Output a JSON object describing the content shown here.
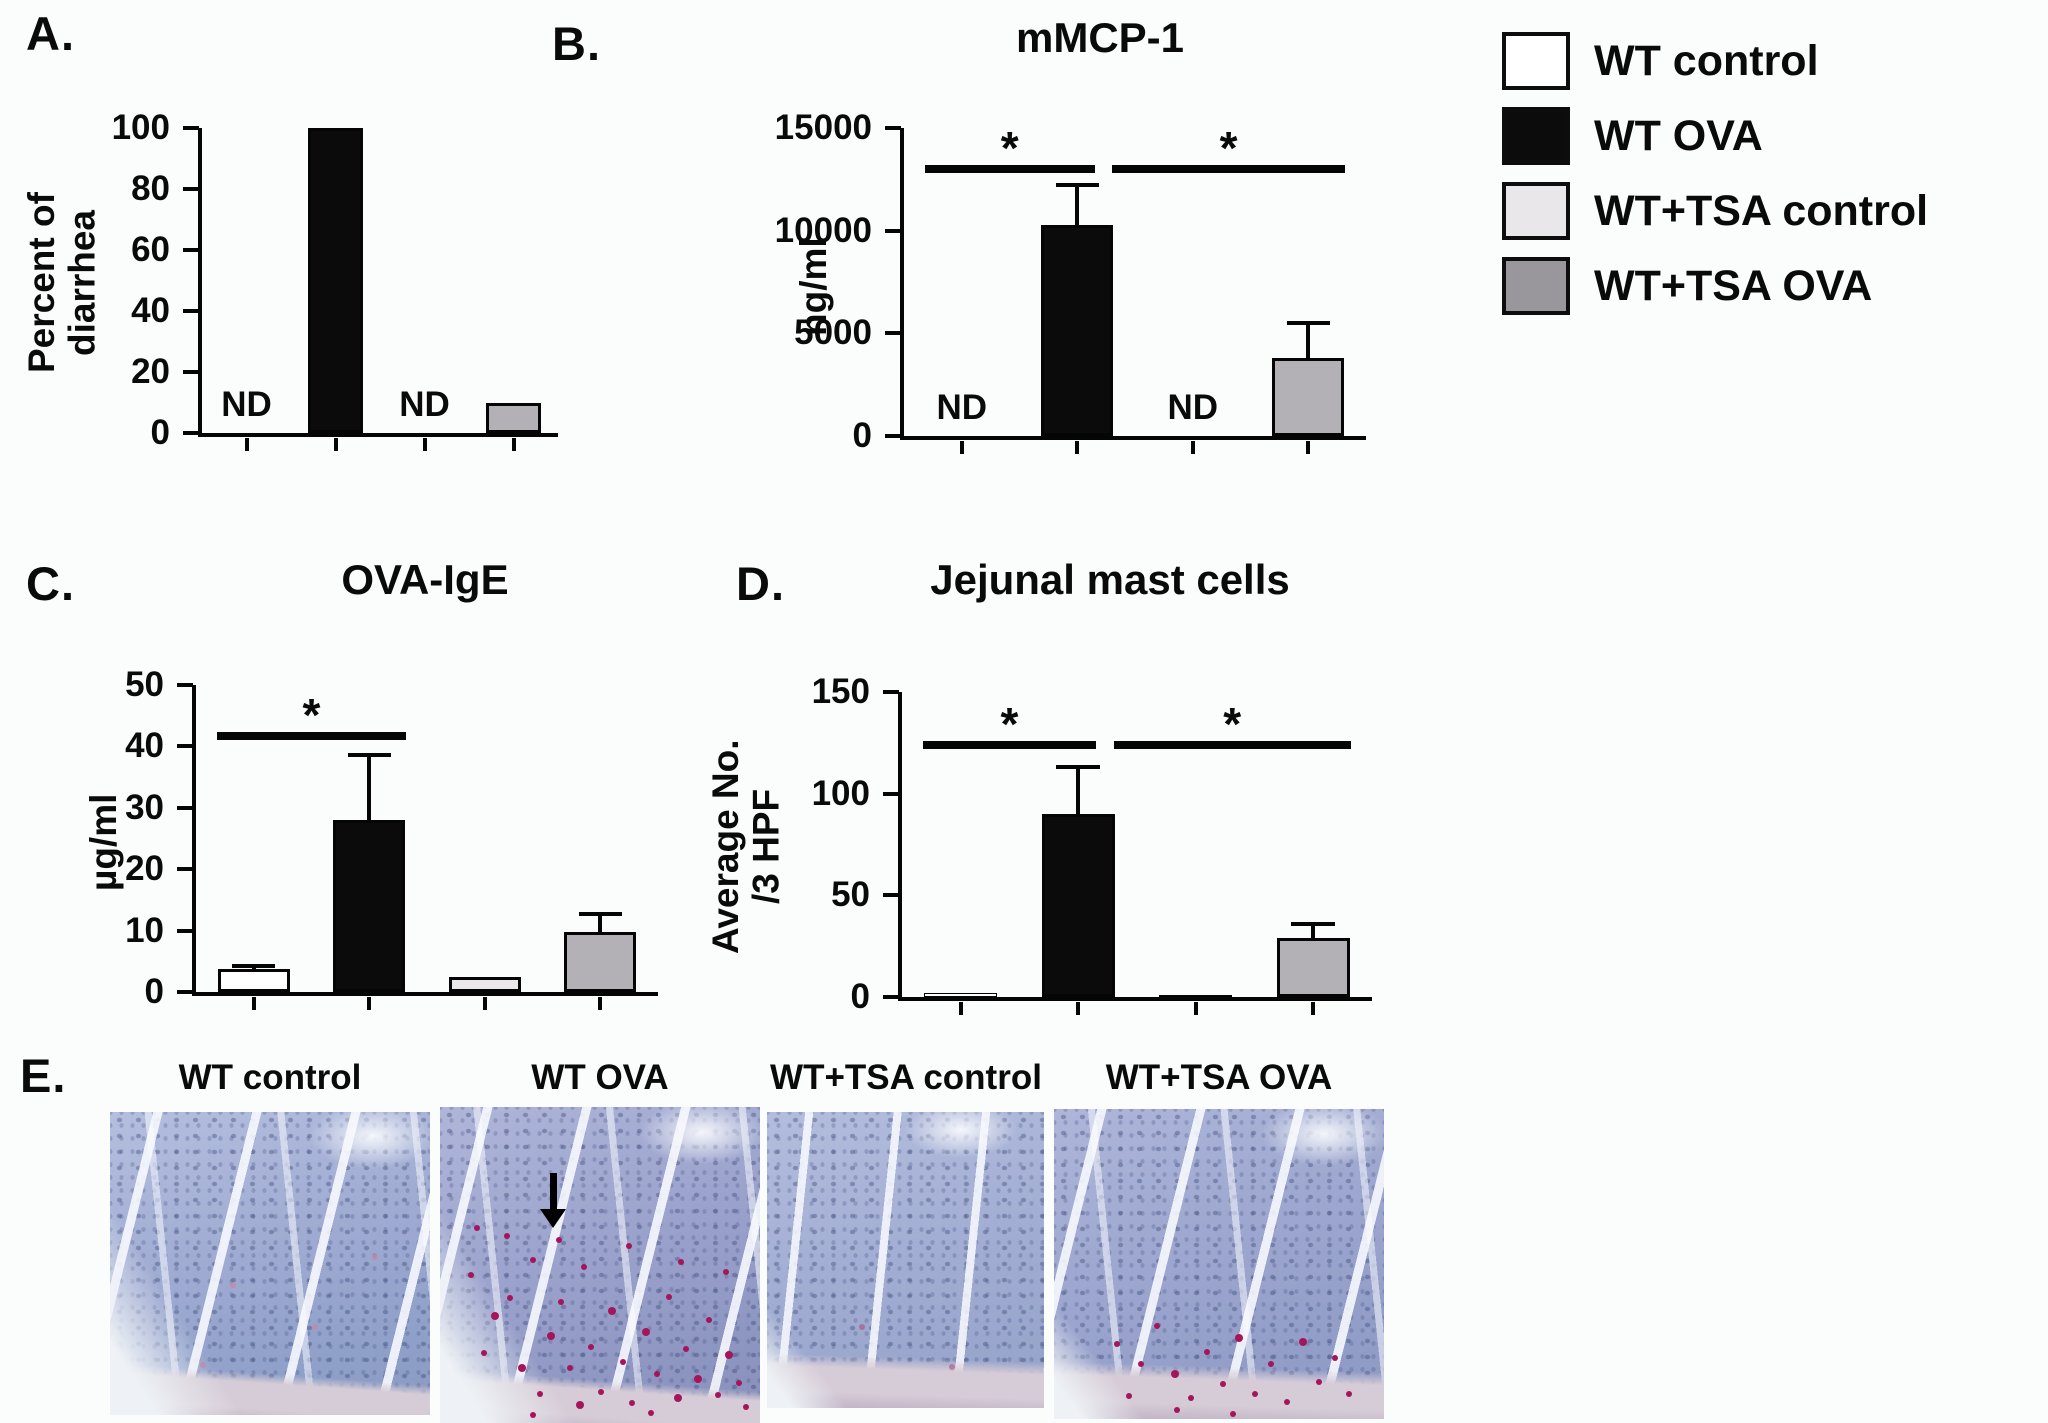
{
  "palette": {
    "background": "#fbfcfc",
    "axis": "#050505",
    "bars": {
      "wt_control": "#ffffff",
      "wt_ova": "#0b0b0b",
      "wt_tsa_control": "#eae8eb",
      "wt_tsa_ova": "#b3b1b5"
    },
    "legend_swatches": {
      "wt_control": "#ffffff",
      "wt_ova": "#0c0c0c",
      "wt_tsa_control": "#e9e7ea",
      "wt_tsa_ova": "#99979c"
    },
    "mast_cell_dot": "#a5155a"
  },
  "legend": {
    "items": [
      {
        "key": "wt_control",
        "label": "WT control"
      },
      {
        "key": "wt_ova",
        "label": "WT OVA"
      },
      {
        "key": "wt_tsa_control",
        "label": "WT+TSA control"
      },
      {
        "key": "wt_tsa_ova",
        "label": "WT+TSA OVA"
      }
    ]
  },
  "panels": {
    "A": {
      "letter": "A.",
      "chart_data": {
        "type": "bar",
        "title": "",
        "ylabel": "Percent of diarrhea",
        "ylim": [
          0,
          100
        ],
        "yticks": [
          0,
          20,
          40,
          60,
          80,
          100
        ],
        "categories": [
          "WT control",
          "WT OVA",
          "WT+TSA control",
          "WT+TSA OVA"
        ],
        "values": [
          0,
          100,
          0,
          10
        ],
        "errors": [
          0,
          0,
          0,
          0
        ],
        "nd": [
          true,
          false,
          true,
          false
        ],
        "nd_label": "ND",
        "bar_colors": [
          "wt_control",
          "wt_ova",
          "wt_tsa_control",
          "wt_tsa_ova"
        ],
        "significance": []
      }
    },
    "B": {
      "letter": "B.",
      "chart_data": {
        "type": "bar",
        "title": "mMCP-1",
        "ylabel": "ng/ml",
        "ylim": [
          0,
          15000
        ],
        "yticks": [
          0,
          5000,
          10000,
          15000
        ],
        "categories": [
          "WT control",
          "WT OVA",
          "WT+TSA control",
          "WT+TSA OVA"
        ],
        "values": [
          0,
          10300,
          0,
          3800
        ],
        "errors": [
          0,
          2000,
          0,
          1800
        ],
        "nd": [
          true,
          false,
          true,
          false
        ],
        "nd_label": "ND",
        "bar_colors": [
          "wt_control",
          "wt_ova",
          "wt_tsa_control",
          "wt_tsa_ova"
        ],
        "significance": [
          {
            "from": 0,
            "to": 1,
            "at": 12800,
            "label": "*"
          },
          {
            "from": 1,
            "to": 3,
            "at": 12800,
            "label": "*"
          }
        ]
      }
    },
    "C": {
      "letter": "C.",
      "chart_data": {
        "type": "bar",
        "title": "OVA-IgE",
        "ylabel": "µg/ml",
        "ylim": [
          0,
          50
        ],
        "yticks": [
          0,
          10,
          20,
          30,
          40,
          50
        ],
        "categories": [
          "WT control",
          "WT OVA",
          "WT+TSA control",
          "WT+TSA OVA"
        ],
        "values": [
          3.8,
          28,
          2.4,
          9.7
        ],
        "errors": [
          0.7,
          11,
          0,
          3.4
        ],
        "nd": [
          false,
          false,
          false,
          false
        ],
        "nd_label": "ND",
        "bar_colors": [
          "wt_control",
          "wt_ova",
          "wt_tsa_control",
          "wt_tsa_ova"
        ],
        "significance": [
          {
            "from": 0,
            "to": 1,
            "at": 41,
            "label": "*"
          }
        ]
      }
    },
    "D": {
      "letter": "D.",
      "chart_data": {
        "type": "bar",
        "title": "Jejunal mast cells",
        "ylabel": "Average No.\n/3 HPF",
        "ylim": [
          0,
          150
        ],
        "yticks": [
          0,
          50,
          100,
          150
        ],
        "categories": [
          "WT control",
          "WT OVA",
          "WT+TSA control",
          "WT+TSA OVA"
        ],
        "values": [
          2,
          90,
          1.2,
          29
        ],
        "errors": [
          0,
          24,
          0,
          8
        ],
        "nd": [
          false,
          false,
          false,
          false
        ],
        "nd_label": "ND",
        "bar_colors": [
          "wt_control",
          "wt_ova",
          "wt_tsa_control",
          "wt_tsa_ova"
        ],
        "significance": [
          {
            "from": 0,
            "to": 1,
            "at": 122,
            "label": "*"
          },
          {
            "from": 1,
            "to": 3,
            "at": 122,
            "label": "*"
          }
        ]
      }
    },
    "E": {
      "letter": "E.",
      "images": [
        {
          "label": "WT control",
          "mast_cells": "rare faint",
          "arrow": false
        },
        {
          "label": "WT OVA",
          "mast_cells": "many",
          "arrow": true
        },
        {
          "label": "WT+TSA control",
          "mast_cells": "rare",
          "arrow": false
        },
        {
          "label": "WT+TSA OVA",
          "mast_cells": "moderate",
          "arrow": false
        }
      ]
    }
  }
}
